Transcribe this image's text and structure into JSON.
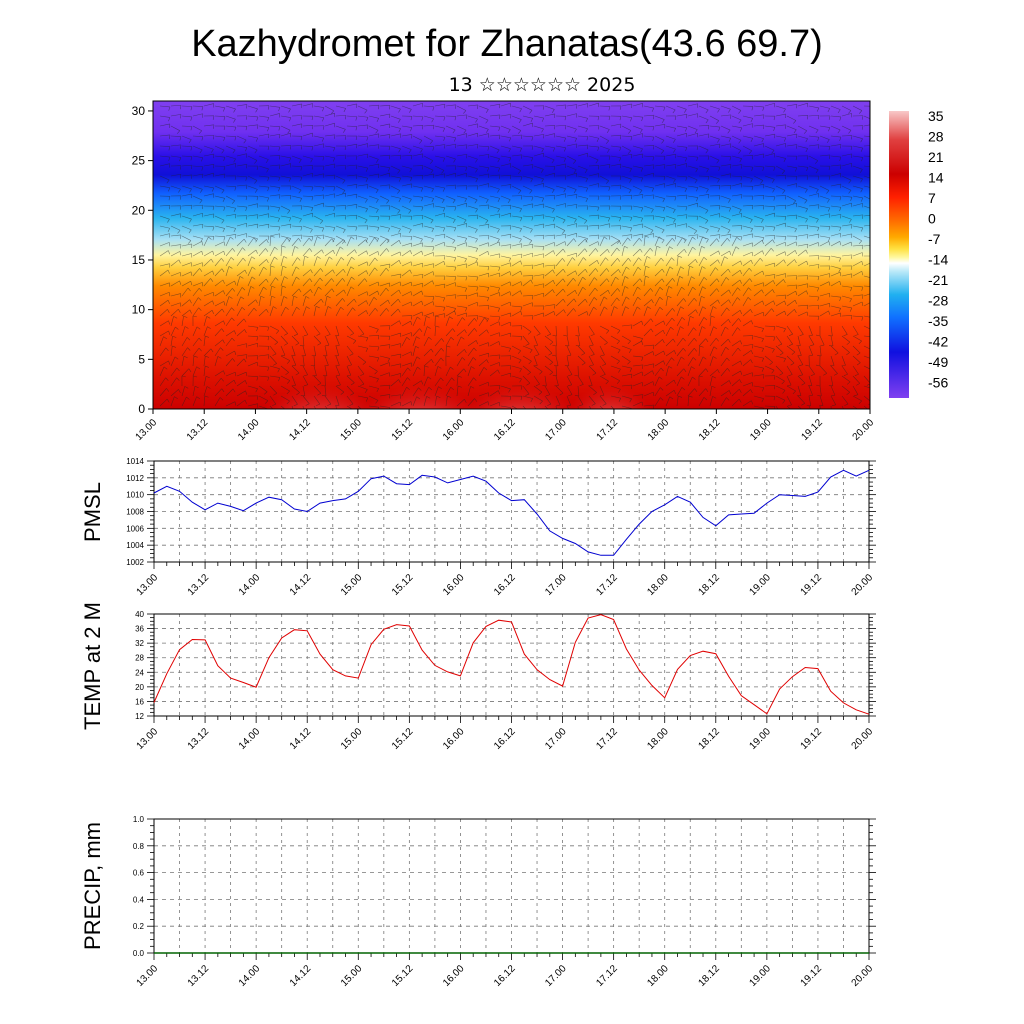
{
  "header": {
    "title": "Kazhydromet for Zhanatas(43.6 69.7)",
    "subtitle": "13 ☆☆☆☆☆☆ 2025"
  },
  "chart_data": [
    {
      "type": "heatmap",
      "name": "upper-air-section",
      "y_ticks": [
        "0",
        "5",
        "10",
        "15",
        "20",
        "25",
        "30"
      ],
      "ylim": [
        0,
        31
      ],
      "x_ticks": [
        "13.00",
        "13.12",
        "14.00",
        "14.12",
        "15.00",
        "15.12",
        "16.00",
        "16.12",
        "17.00",
        "17.12",
        "18.00",
        "18.12",
        "19.00",
        "19.12",
        "20.00"
      ],
      "colorbar_labels": [
        "35",
        "28",
        "21",
        "14",
        "7",
        "0",
        "-7",
        "-14",
        "-21",
        "-28",
        "-35",
        "-42",
        "-49",
        "-56"
      ],
      "colors": {
        "hot": "#f6b8b8",
        "warm": "#d40000",
        "mid": "#ff6a00",
        "yellow": "#ffee55",
        "cyan": "#3bbcf0",
        "blue": "#1010e0",
        "purple": "#7a2ff0"
      }
    },
    {
      "type": "line",
      "name": "pmsl",
      "ylabel": "PMSL",
      "ylim": [
        1002,
        1014
      ],
      "y_ticks": [
        "1002",
        "1004",
        "1006",
        "1008",
        "1010",
        "1012",
        "1014"
      ],
      "x_ticks": [
        "13.00",
        "13.12",
        "14.00",
        "14.12",
        "15.00",
        "15.12",
        "16.00",
        "16.12",
        "17.00",
        "17.12",
        "18.00",
        "18.12",
        "19.00",
        "19.12",
        "20.00"
      ],
      "x": [
        0,
        3,
        6,
        9,
        12,
        15,
        18,
        21,
        24,
        27,
        30,
        33,
        36,
        39,
        42,
        45,
        48,
        51,
        54,
        57,
        60,
        63,
        66,
        69,
        72,
        75,
        78,
        81,
        84,
        87,
        90,
        93,
        96,
        99,
        102,
        105,
        108,
        111,
        114,
        117,
        120,
        123,
        126,
        129,
        132,
        135,
        138,
        141,
        144,
        147,
        150,
        153,
        156,
        159,
        162,
        165,
        168
      ],
      "values": [
        1010.2,
        1011.0,
        1010.4,
        1009.1,
        1008.2,
        1009.0,
        1008.6,
        1008.1,
        1009.0,
        1009.7,
        1009.4,
        1008.3,
        1008.0,
        1009.0,
        1009.3,
        1009.5,
        1010.4,
        1011.9,
        1012.2,
        1011.3,
        1011.2,
        1012.3,
        1012.1,
        1011.4,
        1011.8,
        1012.2,
        1011.6,
        1010.2,
        1009.3,
        1009.4,
        1007.7,
        1005.7,
        1004.8,
        1004.2,
        1003.2,
        1002.8,
        1002.8,
        1004.7,
        1006.5,
        1008.0,
        1008.8,
        1009.8,
        1009.1,
        1007.3,
        1006.3,
        1007.6,
        1007.7,
        1007.8,
        1009.0,
        1010.0,
        1009.9,
        1009.8,
        1010.3,
        1012.1,
        1012.9,
        1012.2,
        1012.9
      ],
      "color": "#0000d0"
    },
    {
      "type": "line",
      "name": "temp2m",
      "ylabel": "TEMP at 2 M",
      "ylim": [
        12,
        40
      ],
      "y_ticks": [
        "12",
        "16",
        "20",
        "24",
        "28",
        "32",
        "36",
        "40"
      ],
      "x_ticks": [
        "13.00",
        "13.12",
        "14.00",
        "14.12",
        "15.00",
        "15.12",
        "16.00",
        "16.12",
        "17.00",
        "17.12",
        "18.00",
        "18.12",
        "19.00",
        "19.12",
        "20.00"
      ],
      "x": [
        0,
        3,
        6,
        9,
        12,
        15,
        18,
        21,
        24,
        27,
        30,
        33,
        36,
        39,
        42,
        45,
        48,
        51,
        54,
        57,
        60,
        63,
        66,
        69,
        72,
        75,
        78,
        81,
        84,
        87,
        90,
        93,
        96,
        99,
        102,
        105,
        108,
        111,
        114,
        117,
        120,
        123,
        126,
        129,
        132,
        135,
        138,
        141,
        144,
        147,
        150,
        153,
        156,
        159,
        162,
        165,
        168
      ],
      "values": [
        15.7,
        23.6,
        30.2,
        33.0,
        32.9,
        25.8,
        22.4,
        21.2,
        19.9,
        28.0,
        33.4,
        35.7,
        35.4,
        29.0,
        24.7,
        23.0,
        22.4,
        31.6,
        35.8,
        37.1,
        36.7,
        30.1,
        25.9,
        24.1,
        23.0,
        32.1,
        36.6,
        38.3,
        37.8,
        29.0,
        24.7,
        22.0,
        20.2,
        32.2,
        38.9,
        39.8,
        38.5,
        30.4,
        24.6,
        20.4,
        17.0,
        24.8,
        28.6,
        29.8,
        29.1,
        22.9,
        17.6,
        15.1,
        12.6,
        19.4,
        22.8,
        25.3,
        25.0,
        18.8,
        15.6,
        13.7,
        12.5
      ],
      "color": "#e00000"
    },
    {
      "type": "line",
      "name": "precip",
      "ylabel": "PRECIP, mm",
      "ylim": [
        0,
        1
      ],
      "y_ticks": [
        "0.0",
        "0.2",
        "0.4",
        "0.6",
        "0.8",
        "1.0"
      ],
      "x_ticks": [
        "13.00",
        "13.12",
        "14.00",
        "14.12",
        "15.00",
        "15.12",
        "16.00",
        "16.12",
        "17.00",
        "17.12",
        "18.00",
        "18.12",
        "19.00",
        "19.12",
        "20.00"
      ],
      "x": [
        0,
        168
      ],
      "values": [
        0,
        0
      ],
      "color": "#006400"
    }
  ]
}
